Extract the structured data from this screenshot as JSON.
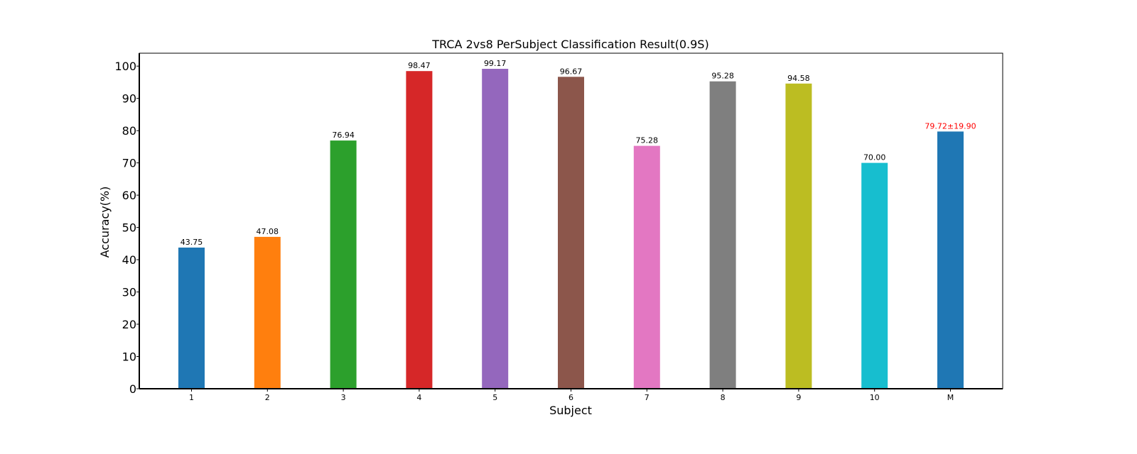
{
  "chart_data": {
    "type": "bar",
    "title": "TRCA 2vs8 PerSubject Classification Result(0.9S)",
    "xlabel": "Subject",
    "ylabel": "Accuracy(%)",
    "ylim": [
      0,
      104
    ],
    "yticks": [
      0,
      10,
      20,
      30,
      40,
      50,
      60,
      70,
      80,
      90,
      100
    ],
    "grid": false,
    "categories": [
      "1",
      "2",
      "3",
      "4",
      "5",
      "6",
      "7",
      "8",
      "9",
      "10",
      "M"
    ],
    "values": [
      43.75,
      47.08,
      76.94,
      98.47,
      99.17,
      96.67,
      75.28,
      95.28,
      94.58,
      70.0,
      79.72
    ],
    "data_labels": [
      "43.75",
      "47.08",
      "76.94",
      "98.47",
      "99.17",
      "96.67",
      "75.28",
      "95.28",
      "94.58",
      "70.00",
      "79.72±19.90"
    ],
    "colors": [
      "#1f77b4",
      "#ff7f0e",
      "#2ca02c",
      "#d62728",
      "#9467bd",
      "#8c564b",
      "#e377c2",
      "#7f7f7f",
      "#bcbd22",
      "#17becf",
      "#1f77b4"
    ],
    "label_colors": [
      "#000000",
      "#000000",
      "#000000",
      "#000000",
      "#000000",
      "#000000",
      "#000000",
      "#000000",
      "#000000",
      "#000000",
      "#ff0000"
    ]
  }
}
